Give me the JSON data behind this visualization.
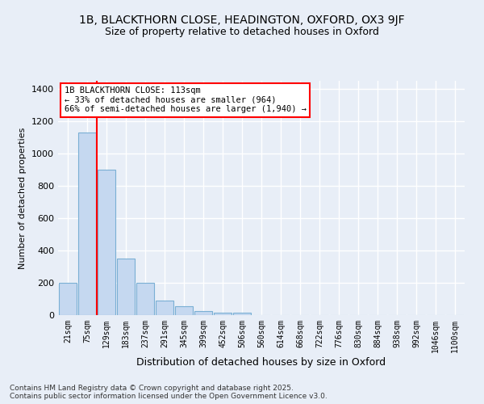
{
  "title_line1": "1B, BLACKTHORN CLOSE, HEADINGTON, OXFORD, OX3 9JF",
  "title_line2": "Size of property relative to detached houses in Oxford",
  "xlabel": "Distribution of detached houses by size in Oxford",
  "ylabel": "Number of detached properties",
  "bar_color": "#c5d8f0",
  "bar_edge_color": "#7aafd4",
  "bg_color": "#e8eef7",
  "grid_color": "#ffffff",
  "categories": [
    "21sqm",
    "75sqm",
    "129sqm",
    "183sqm",
    "237sqm",
    "291sqm",
    "345sqm",
    "399sqm",
    "452sqm",
    "506sqm",
    "560sqm",
    "614sqm",
    "668sqm",
    "722sqm",
    "776sqm",
    "830sqm",
    "884sqm",
    "938sqm",
    "992sqm",
    "1046sqm",
    "1100sqm"
  ],
  "values": [
    200,
    1130,
    900,
    350,
    200,
    90,
    55,
    25,
    15,
    13,
    0,
    0,
    0,
    0,
    0,
    0,
    0,
    0,
    0,
    0,
    0
  ],
  "red_line_x": 1.5,
  "annotation_title": "1B BLACKTHORN CLOSE: 113sqm",
  "annotation_line1": "← 33% of detached houses are smaller (964)",
  "annotation_line2": "66% of semi-detached houses are larger (1,940) →",
  "footer_line1": "Contains HM Land Registry data © Crown copyright and database right 2025.",
  "footer_line2": "Contains public sector information licensed under the Open Government Licence v3.0.",
  "ylim": [
    0,
    1450
  ],
  "yticks": [
    0,
    200,
    400,
    600,
    800,
    1000,
    1200,
    1400
  ],
  "title1_fontsize": 10,
  "title2_fontsize": 9,
  "ylabel_fontsize": 8,
  "xlabel_fontsize": 9,
  "tick_fontsize": 7,
  "annot_fontsize": 7.5,
  "footer_fontsize": 6.5
}
